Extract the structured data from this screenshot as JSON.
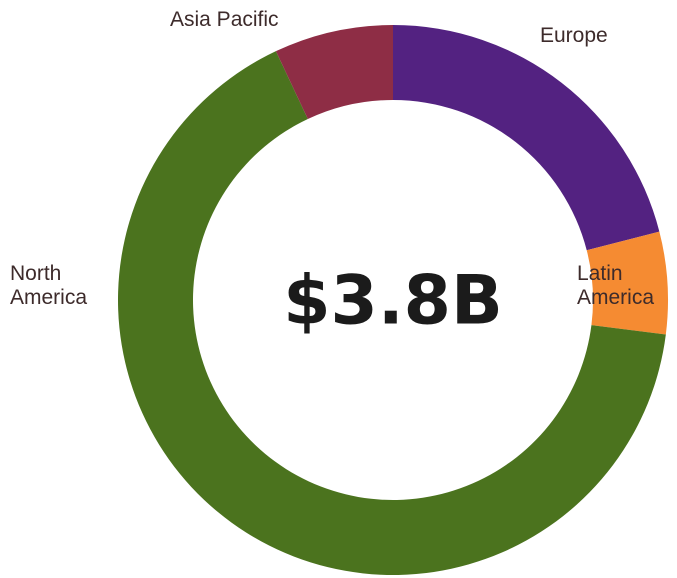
{
  "chart_data": {
    "type": "donut",
    "center_label": "$3.8B",
    "categories": [
      "Europe",
      "Latin America",
      "North America",
      "Asia Pacific"
    ],
    "values": [
      21,
      6,
      66,
      7
    ],
    "colors": [
      "#532281",
      "#f58b32",
      "#4b731e",
      "#8e2d45"
    ]
  }
}
